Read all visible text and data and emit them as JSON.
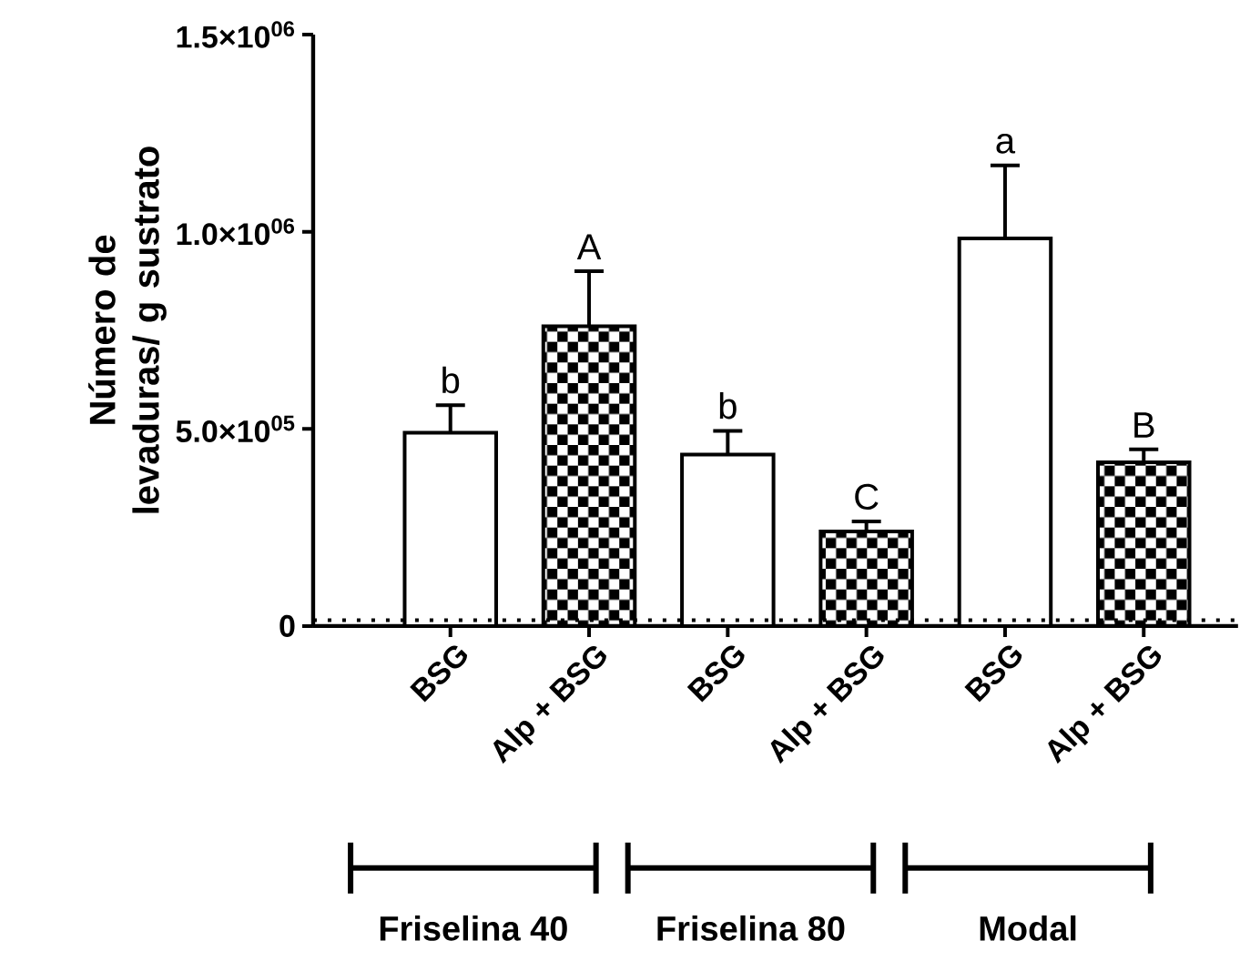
{
  "chart_data": {
    "type": "bar",
    "categories": [
      "BSG",
      "Alp + BSG",
      "BSG",
      "Alp + BSG",
      "BSG",
      "Alp + BSG"
    ],
    "values": [
      490000,
      760000,
      435000,
      240000,
      983000,
      415000
    ],
    "errors": [
      70000,
      140000,
      60000,
      25000,
      185000,
      33000
    ],
    "colors": [
      "#ffffff",
      "#000000",
      "#ffffff",
      "#000000",
      "#ffffff",
      "#000000"
    ],
    "ylabel": "Número de levaduras/ g sustrato",
    "ylim": [
      0,
      1500000
    ],
    "yticks": [
      0,
      {
        "value": 500000,
        "label": "5.0×10$^{05}$"
      },
      {
        "value": 1000000,
        "label": "1.0×10$^{06}$"
      },
      {
        "value": 1500000,
        "label": "1.5×10$^{06}$"
      }
    ],
    "ref_lines": [
      {
        "axis": "y",
        "value": 15000,
        "line_style": "dotted"
      }
    ],
    "annotations": [
      "b",
      "A",
      "b",
      "C",
      "a",
      "B",
      "Friselina 40",
      "Friselina 80",
      "Modal"
    ]
  }
}
